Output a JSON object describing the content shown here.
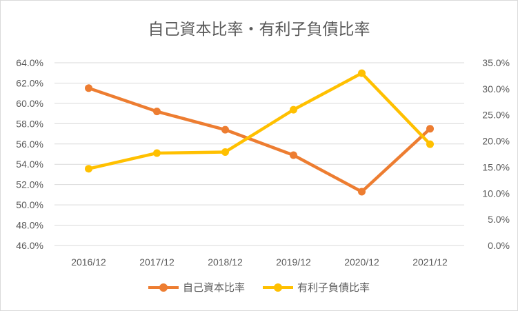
{
  "chart_data": {
    "type": "line",
    "title": "自己資本比率・有利子負債比率",
    "categories": [
      "2016/12",
      "2017/12",
      "2018/12",
      "2019/12",
      "2020/12",
      "2021/12"
    ],
    "series": [
      {
        "name": "自己資本比率",
        "axis": "left",
        "color": "#ED7D31",
        "values": [
          0.615,
          0.592,
          0.574,
          0.549,
          0.513,
          0.575
        ]
      },
      {
        "name": "有利子負債比率",
        "axis": "right",
        "color": "#FFC000",
        "values": [
          0.147,
          0.177,
          0.179,
          0.26,
          0.33,
          0.194
        ]
      }
    ],
    "y_left": {
      "min": 0.46,
      "max": 0.64,
      "step": 0.02,
      "tick_labels": [
        "46.0%",
        "48.0%",
        "50.0%",
        "52.0%",
        "54.0%",
        "56.0%",
        "58.0%",
        "60.0%",
        "62.0%",
        "64.0%"
      ]
    },
    "y_right": {
      "min": 0.0,
      "max": 0.35,
      "step": 0.05,
      "tick_labels": [
        "0.0%",
        "5.0%",
        "10.0%",
        "15.0%",
        "20.0%",
        "25.0%",
        "30.0%",
        "35.0%"
      ]
    },
    "grid": true,
    "legend": "bottom"
  }
}
